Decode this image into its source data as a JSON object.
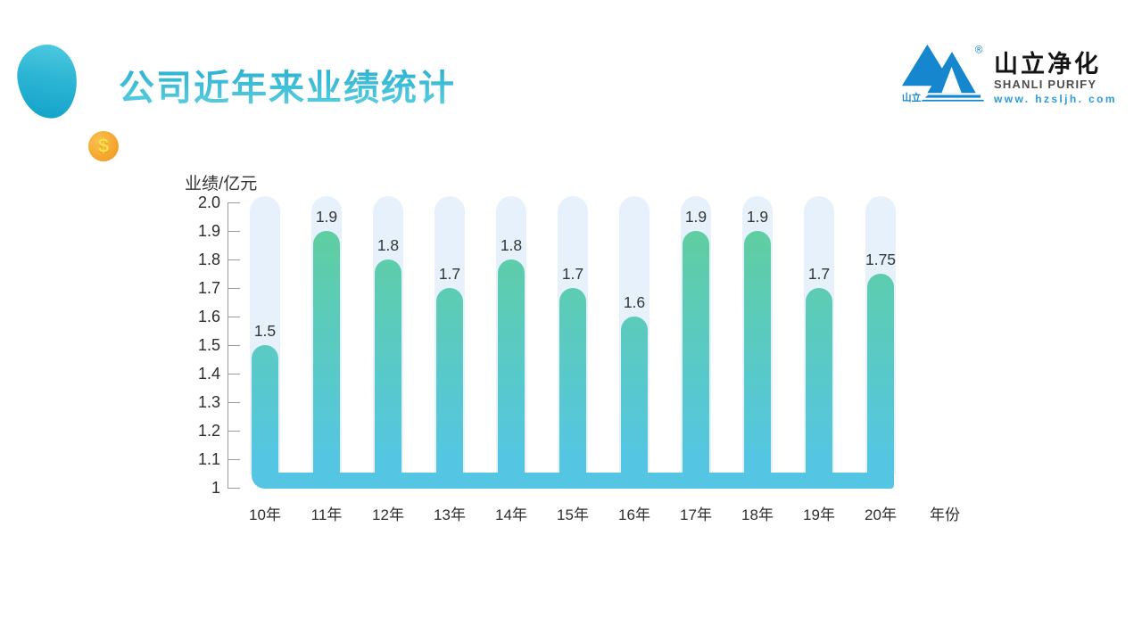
{
  "header": {
    "title": "公司近年来业绩统计"
  },
  "decor": {
    "coin_symbol": "$",
    "blob_color_top": "#4ecadf",
    "blob_color_bottom": "#13a3ca",
    "coin_color": "#f5a832",
    "title_color": "#35b9d6"
  },
  "logo": {
    "icon_label": "山立",
    "registered_mark": "®",
    "name_cn": "山立净化",
    "name_en": "SHANLI PURIFY",
    "website": "www. hzsljh. com",
    "brand_color": "#1687cf"
  },
  "chart_data": {
    "type": "bar",
    "title": "",
    "ylabel": "业绩/亿元",
    "xlabel": "年份",
    "categories": [
      "10年",
      "11年",
      "12年",
      "13年",
      "14年",
      "15年",
      "16年",
      "17年",
      "18年",
      "19年",
      "20年"
    ],
    "values": [
      1.5,
      1.9,
      1.8,
      1.7,
      1.8,
      1.7,
      1.6,
      1.9,
      1.9,
      1.7,
      1.75
    ],
    "labels": [
      "1.5",
      "1.9",
      "1.8",
      "1.7",
      "1.8",
      "1.7",
      "1.6",
      "1.9",
      "1.9",
      "1.7",
      "1.75"
    ],
    "y_ticks": [
      "2.0",
      "1.9",
      "1.8",
      "1.7",
      "1.6",
      "1.5",
      "1.4",
      "1.3",
      "1.2",
      "1.1",
      "1"
    ],
    "ylim": [
      1,
      2
    ],
    "grid": false,
    "legend_position": "none",
    "bar_color_top": "#61cf97",
    "bar_color_bottom": "#54c6e4",
    "track_color": "#e6f1fb"
  }
}
